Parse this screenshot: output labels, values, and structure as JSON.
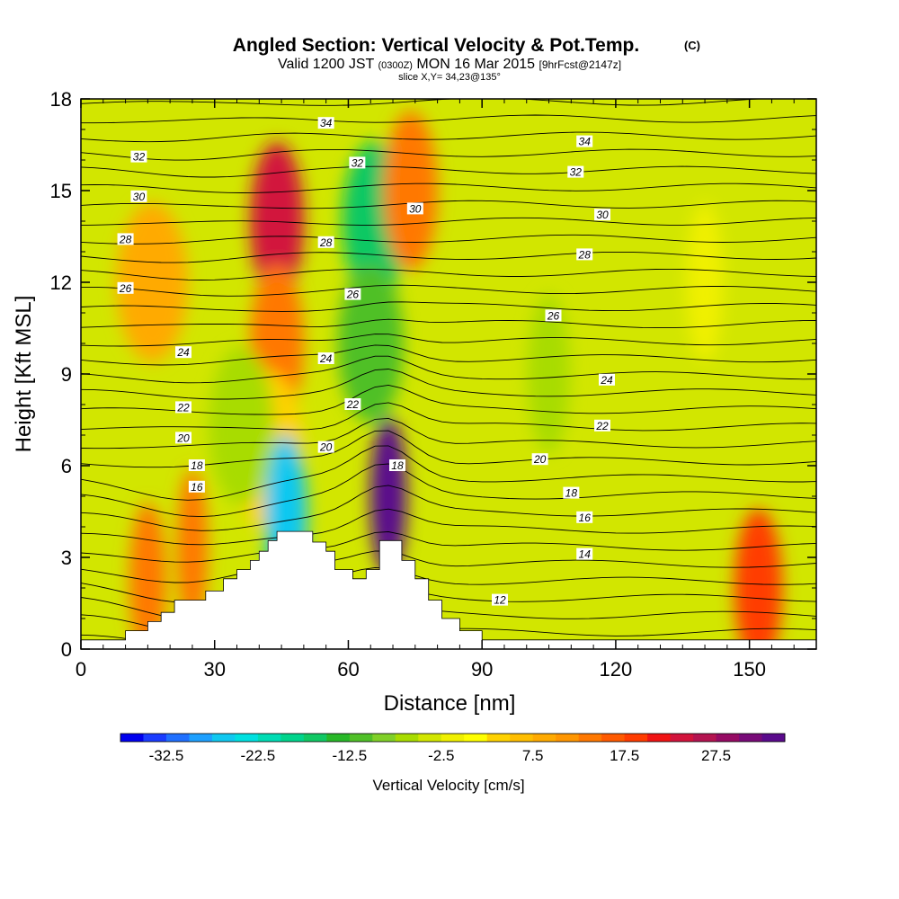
{
  "header": {
    "title": "Angled Section: Vertical Velocity & Pot.Temp.",
    "title_unit": "(C)",
    "subtitle_a": "Valid 1200 JST",
    "subtitle_b": "(0300Z)",
    "subtitle_c": "MON 16 Mar 2015",
    "subtitle_d": "[9hrFcst@2147z]",
    "slice": "slice X,Y= 34,23@135°"
  },
  "chart_data": {
    "type": "heatmap",
    "title": "Angled Section: Vertical Velocity & Pot.Temp. (C)",
    "xlabel": "Distance [nm]",
    "ylabel": "Height [Kft MSL]",
    "xlim": [
      0,
      165
    ],
    "ylim": [
      0,
      18
    ],
    "xticks": [
      0,
      30,
      60,
      90,
      120,
      150
    ],
    "yticks": [
      0,
      3,
      6,
      9,
      12,
      15,
      18
    ],
    "colorbar": {
      "label": "Vertical Velocity [cm/s]",
      "tick_labels": [
        "-32.5",
        "-22.5",
        "-12.5",
        "-2.5",
        "7.5",
        "17.5",
        "27.5"
      ],
      "colors": [
        "#0000ee",
        "#1a3cff",
        "#2070ff",
        "#1ea0ff",
        "#10c8f0",
        "#00e0e0",
        "#00dcb4",
        "#00d48c",
        "#10c864",
        "#28b828",
        "#50c028",
        "#80d028",
        "#a8dc00",
        "#d2e600",
        "#f0f000",
        "#ffff00",
        "#ffd200",
        "#ffbe00",
        "#ffaa00",
        "#ff9600",
        "#ff7800",
        "#ff5a00",
        "#ff3c00",
        "#f01414",
        "#d2143c",
        "#b41450",
        "#960a64",
        "#780a78",
        "#5a0a8c"
      ]
    },
    "terrain_profile": [
      [
        0,
        0.3
      ],
      [
        10,
        0.3
      ],
      [
        10,
        0.6
      ],
      [
        15,
        0.6
      ],
      [
        15,
        0.9
      ],
      [
        18,
        0.9
      ],
      [
        18,
        1.2
      ],
      [
        21,
        1.2
      ],
      [
        21,
        1.6
      ],
      [
        28,
        1.6
      ],
      [
        28,
        1.9
      ],
      [
        32,
        1.9
      ],
      [
        32,
        2.3
      ],
      [
        35,
        2.3
      ],
      [
        35,
        2.6
      ],
      [
        38,
        2.6
      ],
      [
        38,
        2.9
      ],
      [
        40,
        2.9
      ],
      [
        40,
        3.2
      ],
      [
        42,
        3.2
      ],
      [
        42,
        3.55
      ],
      [
        44,
        3.55
      ],
      [
        44,
        3.85
      ],
      [
        52,
        3.85
      ],
      [
        52,
        3.5
      ],
      [
        55,
        3.5
      ],
      [
        55,
        3.2
      ],
      [
        57,
        3.2
      ],
      [
        57,
        2.6
      ],
      [
        61,
        2.6
      ],
      [
        61,
        2.3
      ],
      [
        64,
        2.3
      ],
      [
        64,
        2.6
      ],
      [
        67,
        2.6
      ],
      [
        67,
        3.55
      ],
      [
        72,
        3.55
      ],
      [
        72,
        2.9
      ],
      [
        75,
        2.9
      ],
      [
        75,
        2.3
      ],
      [
        78,
        2.3
      ],
      [
        78,
        1.6
      ],
      [
        81,
        1.6
      ],
      [
        81,
        1.0
      ],
      [
        85,
        1.0
      ],
      [
        85,
        0.6
      ],
      [
        90,
        0.6
      ],
      [
        90,
        0.3
      ],
      [
        165,
        0.3
      ]
    ],
    "velocity_field": {
      "background": "#d2e600",
      "features": [
        {
          "x": 44,
          "y": 14,
          "w": -5,
          "value": 22.5
        },
        {
          "x": 44,
          "y": 10,
          "w": -5,
          "value": 12.5
        },
        {
          "x": 42,
          "y": 6.5,
          "w": -8,
          "value": 2.5
        },
        {
          "x": 66,
          "y": 14,
          "w": -7,
          "value": -17.5
        },
        {
          "x": 65,
          "y": 10,
          "w": -7,
          "value": -12.5
        },
        {
          "x": 74,
          "y": 15,
          "w": 5,
          "value": 12.5
        },
        {
          "x": 69,
          "y": 5.0,
          "w": 2,
          "value": 32.5
        },
        {
          "x": 46,
          "y": 4.4,
          "w": -3,
          "value": -27.5
        },
        {
          "x": 36,
          "y": 7.3,
          "w": 7,
          "value": -7.5
        },
        {
          "x": 25,
          "y": 3.3,
          "w": 1,
          "value": 12.5
        },
        {
          "x": 15,
          "y": 2.2,
          "w": 2,
          "value": 12.5
        },
        {
          "x": 152,
          "y": 2.0,
          "w": 4,
          "value": 17.5
        },
        {
          "x": 16,
          "y": 12,
          "w": 8,
          "value": 7.5
        },
        {
          "x": 105,
          "y": 9,
          "w": 3,
          "value": -7.5
        },
        {
          "x": 140,
          "y": 12,
          "w": 2,
          "value": -2.5
        }
      ]
    },
    "contour_labels": [
      {
        "value": "34",
        "x": 55,
        "y": 17.2
      },
      {
        "value": "34",
        "x": 113,
        "y": 16.6
      },
      {
        "value": "32",
        "x": 13,
        "y": 16.1
      },
      {
        "value": "32",
        "x": 62,
        "y": 15.9
      },
      {
        "value": "32",
        "x": 111,
        "y": 15.6
      },
      {
        "value": "30",
        "x": 13,
        "y": 14.8
      },
      {
        "value": "30",
        "x": 75,
        "y": 14.4
      },
      {
        "value": "30",
        "x": 117,
        "y": 14.2
      },
      {
        "value": "28",
        "x": 10,
        "y": 13.4
      },
      {
        "value": "28",
        "x": 55,
        "y": 13.3
      },
      {
        "value": "28",
        "x": 113,
        "y": 12.9
      },
      {
        "value": "26",
        "x": 10,
        "y": 11.8
      },
      {
        "value": "26",
        "x": 61,
        "y": 11.6
      },
      {
        "value": "26",
        "x": 106,
        "y": 10.9
      },
      {
        "value": "24",
        "x": 23,
        "y": 9.7
      },
      {
        "value": "24",
        "x": 55,
        "y": 9.5
      },
      {
        "value": "24",
        "x": 118,
        "y": 8.8
      },
      {
        "value": "22",
        "x": 23,
        "y": 7.9
      },
      {
        "value": "22",
        "x": 61,
        "y": 8.0
      },
      {
        "value": "22",
        "x": 117,
        "y": 7.3
      },
      {
        "value": "20",
        "x": 23,
        "y": 6.9
      },
      {
        "value": "20",
        "x": 55,
        "y": 6.6
      },
      {
        "value": "20",
        "x": 103,
        "y": 6.2
      },
      {
        "value": "18",
        "x": 26,
        "y": 6.0
      },
      {
        "value": "18",
        "x": 71,
        "y": 6.0
      },
      {
        "value": "18",
        "x": 110,
        "y": 5.1
      },
      {
        "value": "16",
        "x": 26,
        "y": 5.3
      },
      {
        "value": "16",
        "x": 113,
        "y": 4.3
      },
      {
        "value": "14",
        "x": 113,
        "y": 3.1
      },
      {
        "value": "12",
        "x": 94,
        "y": 1.6
      }
    ]
  }
}
